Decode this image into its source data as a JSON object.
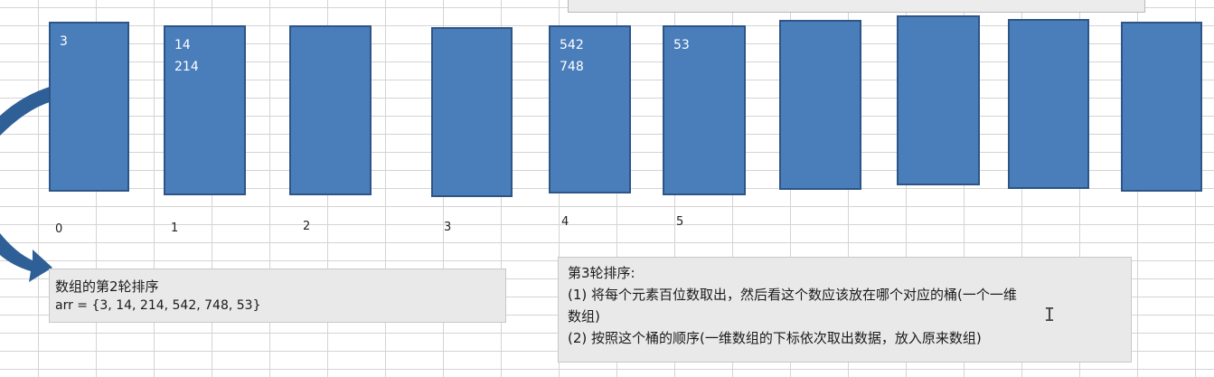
{
  "buckets": [
    {
      "index_label": "0",
      "values": [
        "3"
      ]
    },
    {
      "index_label": "1",
      "values": [
        "14",
        "214"
      ]
    },
    {
      "index_label": "2",
      "values": []
    },
    {
      "index_label": "3",
      "values": []
    },
    {
      "index_label": "4",
      "values": [
        "542",
        "748"
      ]
    },
    {
      "index_label": "5",
      "values": [
        "53"
      ]
    },
    {
      "index_label": "",
      "values": []
    },
    {
      "index_label": "",
      "values": []
    },
    {
      "index_label": "",
      "values": []
    },
    {
      "index_label": "",
      "values": []
    }
  ],
  "round2_note": {
    "title": "数组的第2轮排序",
    "array": "arr = {3, 14, 214, 542, 748, 53}"
  },
  "round3_note": {
    "title": "第3轮排序:",
    "lines": [
      "(1) 将每个元素百位数取出，然后看这个数应该放在哪个对应的桶(一个一维",
      "数组)",
      "(2) 按照这个桶的顺序(一维数组的下标依次取出数据，放入原来数组)"
    ]
  },
  "colors": {
    "bucket_fill": "#4a7ebb",
    "bucket_border": "#2d5586",
    "arrow": "#2e5f96"
  },
  "icons": {
    "cursor": "text-cursor-icon",
    "arrow": "curved-arrow-icon"
  }
}
